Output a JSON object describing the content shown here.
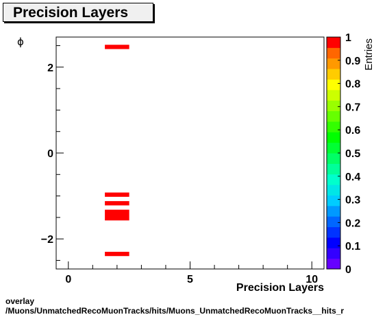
{
  "chart_data": {
    "type": "heatmap",
    "title": "Precision Layers",
    "xlabel": "Precision Layers",
    "ylabel": "ϕ",
    "colorbar_label": "Entries",
    "xlim": [
      -0.5,
      10.5
    ],
    "ylim": [
      -2.7,
      2.7
    ],
    "x_ticks": [
      0,
      5,
      10
    ],
    "y_ticks": [
      -2,
      0,
      2
    ],
    "colorbar_range": [
      0,
      1
    ],
    "colorbar_ticks": [
      "0",
      "0.1",
      "0.2",
      "0.3",
      "0.4",
      "0.5",
      "0.6",
      "0.7",
      "0.8",
      "0.9",
      "1"
    ],
    "cells": [
      {
        "x": [
          1.5,
          2.5
        ],
        "y": [
          2.42,
          2.52
        ],
        "value": 1
      },
      {
        "x": [
          1.5,
          2.5
        ],
        "y": [
          -1.02,
          -0.92
        ],
        "value": 1
      },
      {
        "x": [
          1.5,
          2.5
        ],
        "y": [
          -1.22,
          -1.12
        ],
        "value": 1
      },
      {
        "x": [
          1.5,
          2.5
        ],
        "y": [
          -1.57,
          -1.32
        ],
        "value": 1
      },
      {
        "x": [
          1.5,
          2.5
        ],
        "y": [
          -2.4,
          -2.3
        ],
        "value": 1
      }
    ]
  },
  "footer": {
    "line1": "overlay",
    "line2": "/Muons/UnmatchedRecoMuonTracks/hits/Muons_UnmatchedRecoMuonTracks__hits_r"
  }
}
